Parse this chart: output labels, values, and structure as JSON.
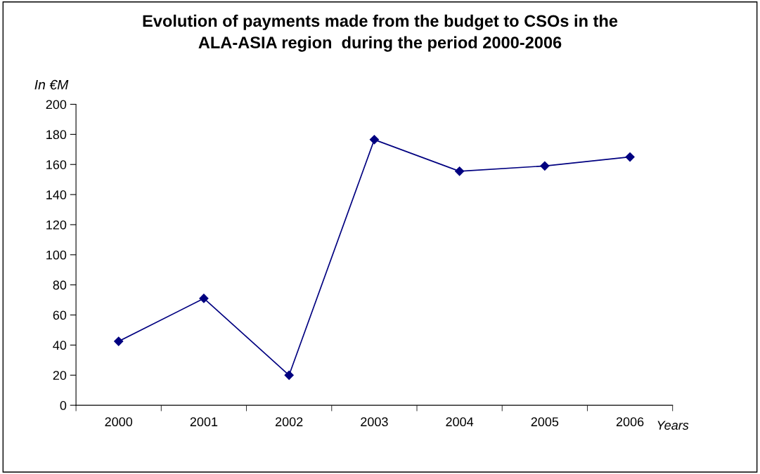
{
  "chart_data": {
    "type": "line",
    "title": "Evolution of payments made from the budget to CSOs in the\nALA-ASIA region  during the period 2000-2006",
    "ylabel": "In €M",
    "xlabel": "Years",
    "categories": [
      "2000",
      "2001",
      "2002",
      "2003",
      "2004",
      "2005",
      "2006"
    ],
    "series": [
      {
        "color": "#000080",
        "values": [
          42.5,
          71,
          20,
          176.5,
          155.5,
          159,
          165
        ]
      }
    ],
    "ylim": [
      0,
      200
    ],
    "yticks": [
      0,
      20,
      40,
      60,
      80,
      100,
      120,
      140,
      160,
      180,
      200
    ],
    "marker": "diamond",
    "line_style": "solid",
    "grid": false,
    "legend": false
  }
}
